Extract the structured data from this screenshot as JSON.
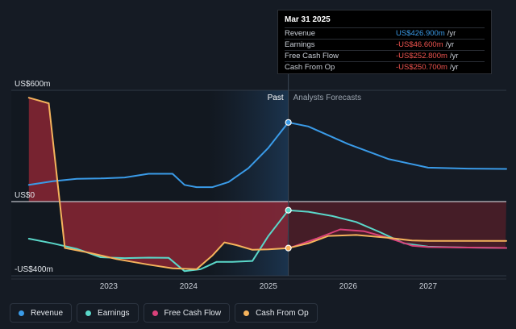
{
  "chart_data": {
    "type": "line",
    "y_ticks": [
      {
        "value": 600,
        "label": "US$600m"
      },
      {
        "value": 0,
        "label": "US$0"
      },
      {
        "value": -400,
        "label": "-US$400m"
      }
    ],
    "x_ticks": [
      {
        "value": 2023,
        "label": "2023"
      },
      {
        "value": 2024,
        "label": "2024"
      },
      {
        "value": 2025,
        "label": "2025"
      },
      {
        "value": 2026,
        "label": "2026"
      },
      {
        "value": 2027,
        "label": "2027"
      }
    ],
    "xlim": [
      2021.78,
      2027.98
    ],
    "ylim": [
      -400,
      600
    ],
    "past_label": "Past",
    "forecast_label": "Analysts Forecasts",
    "divider_x": 2025.25,
    "highlight_range": [
      2024.25,
      2025.25
    ],
    "series": [
      {
        "name": "Revenue",
        "color": "#3a9be8",
        "points": [
          [
            2022.0,
            90
          ],
          [
            2022.3,
            110
          ],
          [
            2022.6,
            123
          ],
          [
            2022.9,
            125
          ],
          [
            2023.2,
            130
          ],
          [
            2023.5,
            150
          ],
          [
            2023.8,
            150
          ],
          [
            2023.95,
            90
          ],
          [
            2024.1,
            78
          ],
          [
            2024.3,
            78
          ],
          [
            2024.5,
            105
          ],
          [
            2024.75,
            180
          ],
          [
            2025.0,
            290
          ],
          [
            2025.25,
            426.9
          ],
          [
            2025.5,
            405
          ],
          [
            2026.0,
            310
          ],
          [
            2026.5,
            230
          ],
          [
            2027.0,
            183
          ],
          [
            2027.5,
            178
          ],
          [
            2027.98,
            176
          ]
        ]
      },
      {
        "name": "Earnings",
        "color": "#5ad7c9",
        "points": [
          [
            2022.0,
            -200
          ],
          [
            2022.3,
            -225
          ],
          [
            2022.6,
            -255
          ],
          [
            2022.9,
            -300
          ],
          [
            2023.2,
            -305
          ],
          [
            2023.5,
            -302
          ],
          [
            2023.75,
            -303
          ],
          [
            2023.95,
            -375
          ],
          [
            2024.15,
            -365
          ],
          [
            2024.35,
            -325
          ],
          [
            2024.55,
            -325
          ],
          [
            2024.8,
            -320
          ],
          [
            2025.0,
            -185
          ],
          [
            2025.25,
            -46.6
          ],
          [
            2025.5,
            -55
          ],
          [
            2025.8,
            -78
          ],
          [
            2026.1,
            -110
          ],
          [
            2026.4,
            -165
          ],
          [
            2026.7,
            -225
          ],
          [
            2027.0,
            -243
          ],
          [
            2027.5,
            -248
          ],
          [
            2027.98,
            -250
          ]
        ]
      },
      {
        "name": "Free Cash Flow",
        "color": "#d9417a",
        "points": [
          [
            2025.25,
            -252.8
          ],
          [
            2025.6,
            -200
          ],
          [
            2025.9,
            -150
          ],
          [
            2026.2,
            -160
          ],
          [
            2026.5,
            -195
          ],
          [
            2026.8,
            -238
          ],
          [
            2027.0,
            -245
          ],
          [
            2027.5,
            -248
          ],
          [
            2027.98,
            -250
          ]
        ]
      },
      {
        "name": "Cash From Op",
        "color": "#f5b35c",
        "points": [
          [
            2022.0,
            560
          ],
          [
            2022.25,
            530
          ],
          [
            2022.45,
            -250
          ],
          [
            2022.75,
            -275
          ],
          [
            2023.1,
            -310
          ],
          [
            2023.5,
            -340
          ],
          [
            2023.8,
            -360
          ],
          [
            2024.1,
            -365
          ],
          [
            2024.3,
            -290
          ],
          [
            2024.45,
            -220
          ],
          [
            2024.6,
            -235
          ],
          [
            2024.8,
            -260
          ],
          [
            2025.0,
            -258
          ],
          [
            2025.25,
            -250.7
          ],
          [
            2025.5,
            -225
          ],
          [
            2025.75,
            -185
          ],
          [
            2026.1,
            -180
          ],
          [
            2026.5,
            -195
          ],
          [
            2026.8,
            -210
          ],
          [
            2027.0,
            -212
          ],
          [
            2027.5,
            -212
          ],
          [
            2027.98,
            -212
          ]
        ]
      }
    ]
  },
  "tooltip": {
    "date": "Mar 31 2025",
    "rows": [
      {
        "label": "Revenue",
        "value": "US$426.900m",
        "unit": "/yr",
        "color": "#3a9be8"
      },
      {
        "label": "Earnings",
        "value": "-US$46.600m",
        "unit": "/yr",
        "color": "#f0544f"
      },
      {
        "label": "Free Cash Flow",
        "value": "-US$252.800m",
        "unit": "/yr",
        "color": "#f0544f"
      },
      {
        "label": "Cash From Op",
        "value": "-US$250.700m",
        "unit": "/yr",
        "color": "#f0544f"
      }
    ]
  },
  "legend": [
    {
      "label": "Revenue",
      "color": "#3a9be8"
    },
    {
      "label": "Earnings",
      "color": "#5ad7c9"
    },
    {
      "label": "Free Cash Flow",
      "color": "#d9417a"
    },
    {
      "label": "Cash From Op",
      "color": "#f5b35c"
    }
  ]
}
